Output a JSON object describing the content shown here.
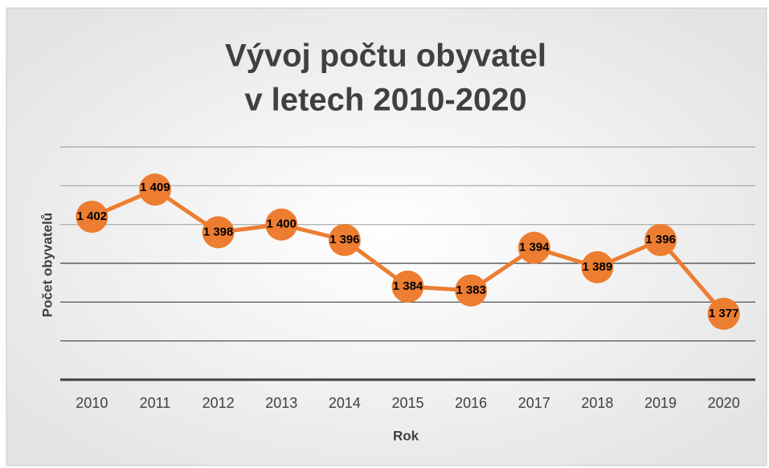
{
  "chart_data": {
    "type": "line",
    "title": [
      "Vývoj počtu obyvatel",
      "v letech 2010-2020"
    ],
    "x_label": "Rok",
    "y_label": "Počet obyvatelů",
    "categories": [
      "2010",
      "2011",
      "2012",
      "2013",
      "2014",
      "2015",
      "2016",
      "2017",
      "2018",
      "2019",
      "2020"
    ],
    "series": [
      {
        "name": "Počet obyvatelů",
        "color": "#ed7d31",
        "values": [
          1402,
          1409,
          1398,
          1400,
          1396,
          1384,
          1383,
          1394,
          1389,
          1396,
          1377
        ],
        "value_labels": [
          "1 402",
          "1 409",
          "1 398",
          "1 400",
          "1 396",
          "1 384",
          "1 383",
          "1 394",
          "1 389",
          "1 396",
          "1 377"
        ]
      }
    ],
    "ylim": [
      1360,
      1420
    ],
    "yticks": [
      1360,
      1370,
      1380,
      1390,
      1400,
      1410,
      1420
    ],
    "grid": true
  }
}
